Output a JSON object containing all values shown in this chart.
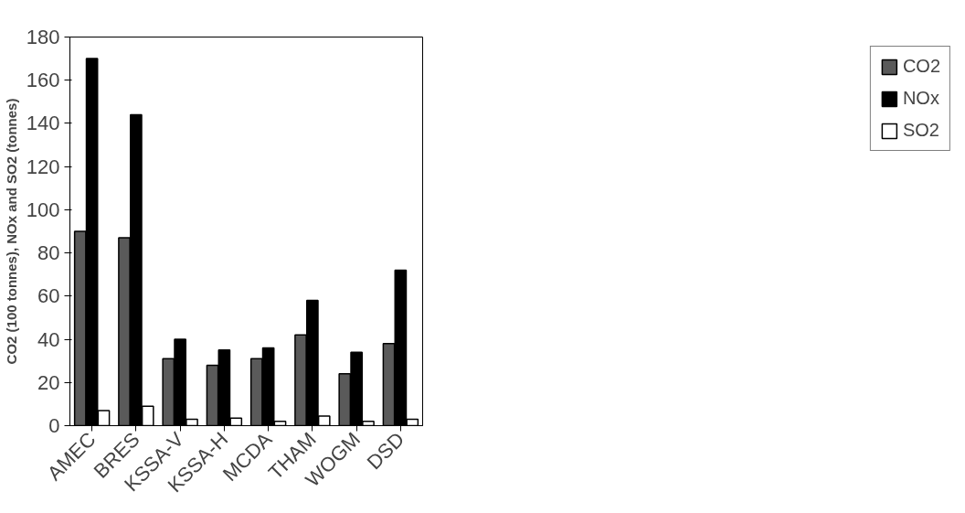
{
  "chart_data": {
    "type": "bar",
    "ylabel": "CO2 (100 tonnes), NOx and SO2 (tonnes)",
    "categories": [
      "AMEC",
      "BRES",
      "KSSA-V",
      "KSSA-H",
      "MCDA",
      "THAM",
      "WOGM",
      "DSD"
    ],
    "series": [
      {
        "name": "CO2",
        "color": "#5a5a5a",
        "values": [
          90,
          87,
          31,
          28,
          31,
          42,
          24,
          38
        ]
      },
      {
        "name": "NOx",
        "color": "#000000",
        "values": [
          170,
          144,
          40,
          35,
          36,
          58,
          34,
          72
        ]
      },
      {
        "name": "SO2",
        "color": "#ffffff",
        "values": [
          7,
          9,
          3,
          3.5,
          2,
          4.5,
          2,
          3
        ]
      }
    ],
    "ylim": [
      0,
      180
    ],
    "yticks": [
      0,
      20,
      40,
      60,
      80,
      100,
      120,
      140,
      160,
      180
    ],
    "grid": false,
    "legend": "right"
  }
}
